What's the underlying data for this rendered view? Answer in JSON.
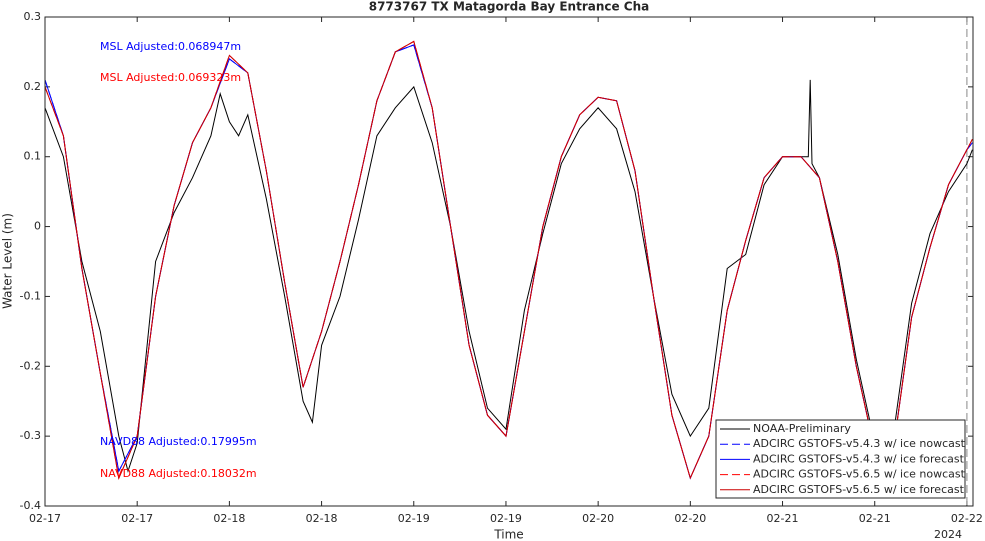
{
  "chart_data": {
    "type": "line",
    "title": "8773767 TX Matagorda Bay Entrance Cha",
    "x_label": "Time",
    "y_label": "Water Level (m)",
    "x_sublabel": "2024",
    "xlim": [
      17,
      22.033
    ],
    "ylim": [
      -0.4,
      0.3
    ],
    "xticks": [
      {
        "value": 17,
        "label": "02-17"
      },
      {
        "value": 17.5,
        "label": "02-17"
      },
      {
        "value": 18,
        "label": "02-18"
      },
      {
        "value": 18.5,
        "label": "02-18"
      },
      {
        "value": 19,
        "label": "02-19"
      },
      {
        "value": 19.5,
        "label": "02-19"
      },
      {
        "value": 20,
        "label": "02-20"
      },
      {
        "value": 20.5,
        "label": "02-20"
      },
      {
        "value": 21,
        "label": "02-21"
      },
      {
        "value": 21.5,
        "label": "02-21"
      },
      {
        "value": 22,
        "label": "02-22"
      }
    ],
    "yticks": [
      -0.4,
      -0.3,
      -0.2,
      -0.1,
      0,
      0.1,
      0.2,
      0.3
    ],
    "vline": 22,
    "legend": "southeast",
    "x": [
      17.0,
      17.1,
      17.2,
      17.3,
      17.4,
      17.5,
      17.6,
      17.7,
      17.8,
      17.9,
      18.0,
      18.1,
      18.2,
      18.3,
      18.4,
      18.5,
      18.6,
      18.7,
      18.8,
      18.9,
      19.0,
      19.1,
      19.2,
      19.3,
      19.4,
      19.5,
      19.6,
      19.7,
      19.8,
      19.9,
      20.0,
      20.1,
      20.2,
      20.3,
      20.4,
      20.5,
      20.6,
      20.7,
      20.8,
      20.9,
      21.0,
      21.1,
      21.2,
      21.3,
      21.4,
      21.5,
      21.6,
      21.7,
      21.8,
      21.9,
      22.0,
      22.03
    ],
    "series": [
      {
        "name": "NOAA-Preliminary",
        "color": "#000000",
        "dash": false,
        "x": [
          17.0,
          17.1,
          17.2,
          17.3,
          17.4,
          17.45,
          17.5,
          17.6,
          17.7,
          17.8,
          17.9,
          17.95,
          18.0,
          18.05,
          18.1,
          18.2,
          18.3,
          18.4,
          18.45,
          18.5,
          18.6,
          18.7,
          18.8,
          18.9,
          19.0,
          19.1,
          19.2,
          19.3,
          19.4,
          19.5,
          19.6,
          19.7,
          19.8,
          19.9,
          20.0,
          20.1,
          20.2,
          20.3,
          20.4,
          20.5,
          20.6,
          20.7,
          20.8,
          20.9,
          21.0,
          21.1,
          21.14,
          21.15,
          21.16,
          21.2,
          21.3,
          21.4,
          21.5,
          21.6,
          21.7,
          21.8,
          21.9,
          22.0,
          22.03
        ],
        "values": [
          0.17,
          0.1,
          -0.05,
          -0.15,
          -0.3,
          -0.35,
          -0.31,
          -0.05,
          0.02,
          0.07,
          0.13,
          0.19,
          0.15,
          0.13,
          0.16,
          0.04,
          -0.1,
          -0.25,
          -0.28,
          -0.17,
          -0.1,
          0.01,
          0.13,
          0.17,
          0.2,
          0.12,
          0.0,
          -0.15,
          -0.26,
          -0.29,
          -0.12,
          -0.01,
          0.09,
          0.14,
          0.17,
          0.14,
          0.05,
          -0.1,
          -0.24,
          -0.3,
          -0.26,
          -0.06,
          -0.04,
          0.06,
          0.1,
          0.1,
          0.1,
          0.21,
          0.09,
          0.07,
          -0.04,
          -0.19,
          -0.31,
          -0.3,
          -0.11,
          -0.01,
          0.05,
          0.09,
          0.11
        ]
      },
      {
        "name": "ADCIRC GSTOFS-v5.4.3 w/ ice nowcast",
        "color": "#0000ff",
        "dash": true,
        "values": [
          0.21,
          0.13,
          -0.06,
          -0.21,
          -0.35,
          -0.3,
          -0.1,
          0.03,
          0.12,
          0.17,
          0.24,
          0.22,
          0.08,
          -0.08,
          -0.23,
          -0.15,
          -0.05,
          0.06,
          0.18,
          0.25,
          0.26,
          0.17,
          0.0,
          -0.17,
          -0.27,
          -0.3,
          -0.15,
          0.0,
          0.1,
          0.16,
          0.185,
          0.18,
          0.08,
          -0.1,
          -0.27,
          -0.36,
          -0.3,
          -0.12,
          -0.02,
          0.07,
          0.1,
          0.1,
          0.07,
          -0.05,
          -0.2,
          -0.32,
          -0.32,
          -0.13,
          -0.03,
          0.06,
          0.11,
          0.12
        ]
      },
      {
        "name": "ADCIRC GSTOFS-v5.4.3 w/ ice forecast",
        "color": "#0000ff",
        "dash": false,
        "values": [
          0.21,
          0.13,
          -0.06,
          -0.21,
          -0.35,
          -0.3,
          -0.1,
          0.03,
          0.12,
          0.17,
          0.24,
          0.22,
          0.08,
          -0.08,
          -0.23,
          -0.15,
          -0.05,
          0.06,
          0.18,
          0.25,
          0.26,
          0.17,
          0.0,
          -0.17,
          -0.27,
          -0.3,
          -0.15,
          0.0,
          0.1,
          0.16,
          0.185,
          0.18,
          0.08,
          -0.1,
          -0.27,
          -0.36,
          -0.3,
          -0.12,
          -0.02,
          0.07,
          0.1,
          0.1,
          0.07,
          -0.05,
          -0.2,
          -0.32,
          -0.32,
          -0.13,
          -0.03,
          0.06,
          0.11,
          0.12
        ]
      },
      {
        "name": "ADCIRC GSTOFS-v5.6.5 w/ ice nowcast",
        "color": "#ff0000",
        "dash": true,
        "values": [
          0.2,
          0.13,
          -0.06,
          -0.21,
          -0.36,
          -0.3,
          -0.1,
          0.03,
          0.12,
          0.17,
          0.245,
          0.22,
          0.08,
          -0.08,
          -0.23,
          -0.15,
          -0.05,
          0.06,
          0.18,
          0.25,
          0.265,
          0.17,
          0.0,
          -0.17,
          -0.27,
          -0.3,
          -0.15,
          0.0,
          0.1,
          0.16,
          0.185,
          0.18,
          0.08,
          -0.1,
          -0.27,
          -0.36,
          -0.3,
          -0.12,
          -0.02,
          0.07,
          0.1,
          0.1,
          0.07,
          -0.05,
          -0.2,
          -0.32,
          -0.32,
          -0.13,
          -0.03,
          0.06,
          0.11,
          0.125
        ]
      },
      {
        "name": "ADCIRC GSTOFS-v5.6.5 w/ ice forecast",
        "color": "#cc0000",
        "dash": false,
        "values": [
          0.2,
          0.13,
          -0.06,
          -0.21,
          -0.36,
          -0.3,
          -0.1,
          0.03,
          0.12,
          0.17,
          0.245,
          0.22,
          0.08,
          -0.08,
          -0.23,
          -0.15,
          -0.05,
          0.06,
          0.18,
          0.25,
          0.265,
          0.17,
          0.0,
          -0.17,
          -0.27,
          -0.3,
          -0.15,
          0.0,
          0.1,
          0.16,
          0.185,
          0.18,
          0.08,
          -0.1,
          -0.27,
          -0.36,
          -0.3,
          -0.12,
          -0.02,
          0.07,
          0.1,
          0.1,
          0.07,
          -0.05,
          -0.2,
          -0.32,
          -0.32,
          -0.13,
          -0.03,
          0.06,
          0.11,
          0.125
        ]
      }
    ],
    "annotations": [
      {
        "text": "MSL Adjusted:0.068947m",
        "color": "#0000ff"
      },
      {
        "text": "MSL Adjusted:0.069323m",
        "color": "#ff0000"
      },
      {
        "text": "NAVD88 Adjusted:0.17995m",
        "color": "#0000ff"
      },
      {
        "text": "NAVD88 Adjusted:0.18032m",
        "color": "#ff0000"
      }
    ]
  }
}
